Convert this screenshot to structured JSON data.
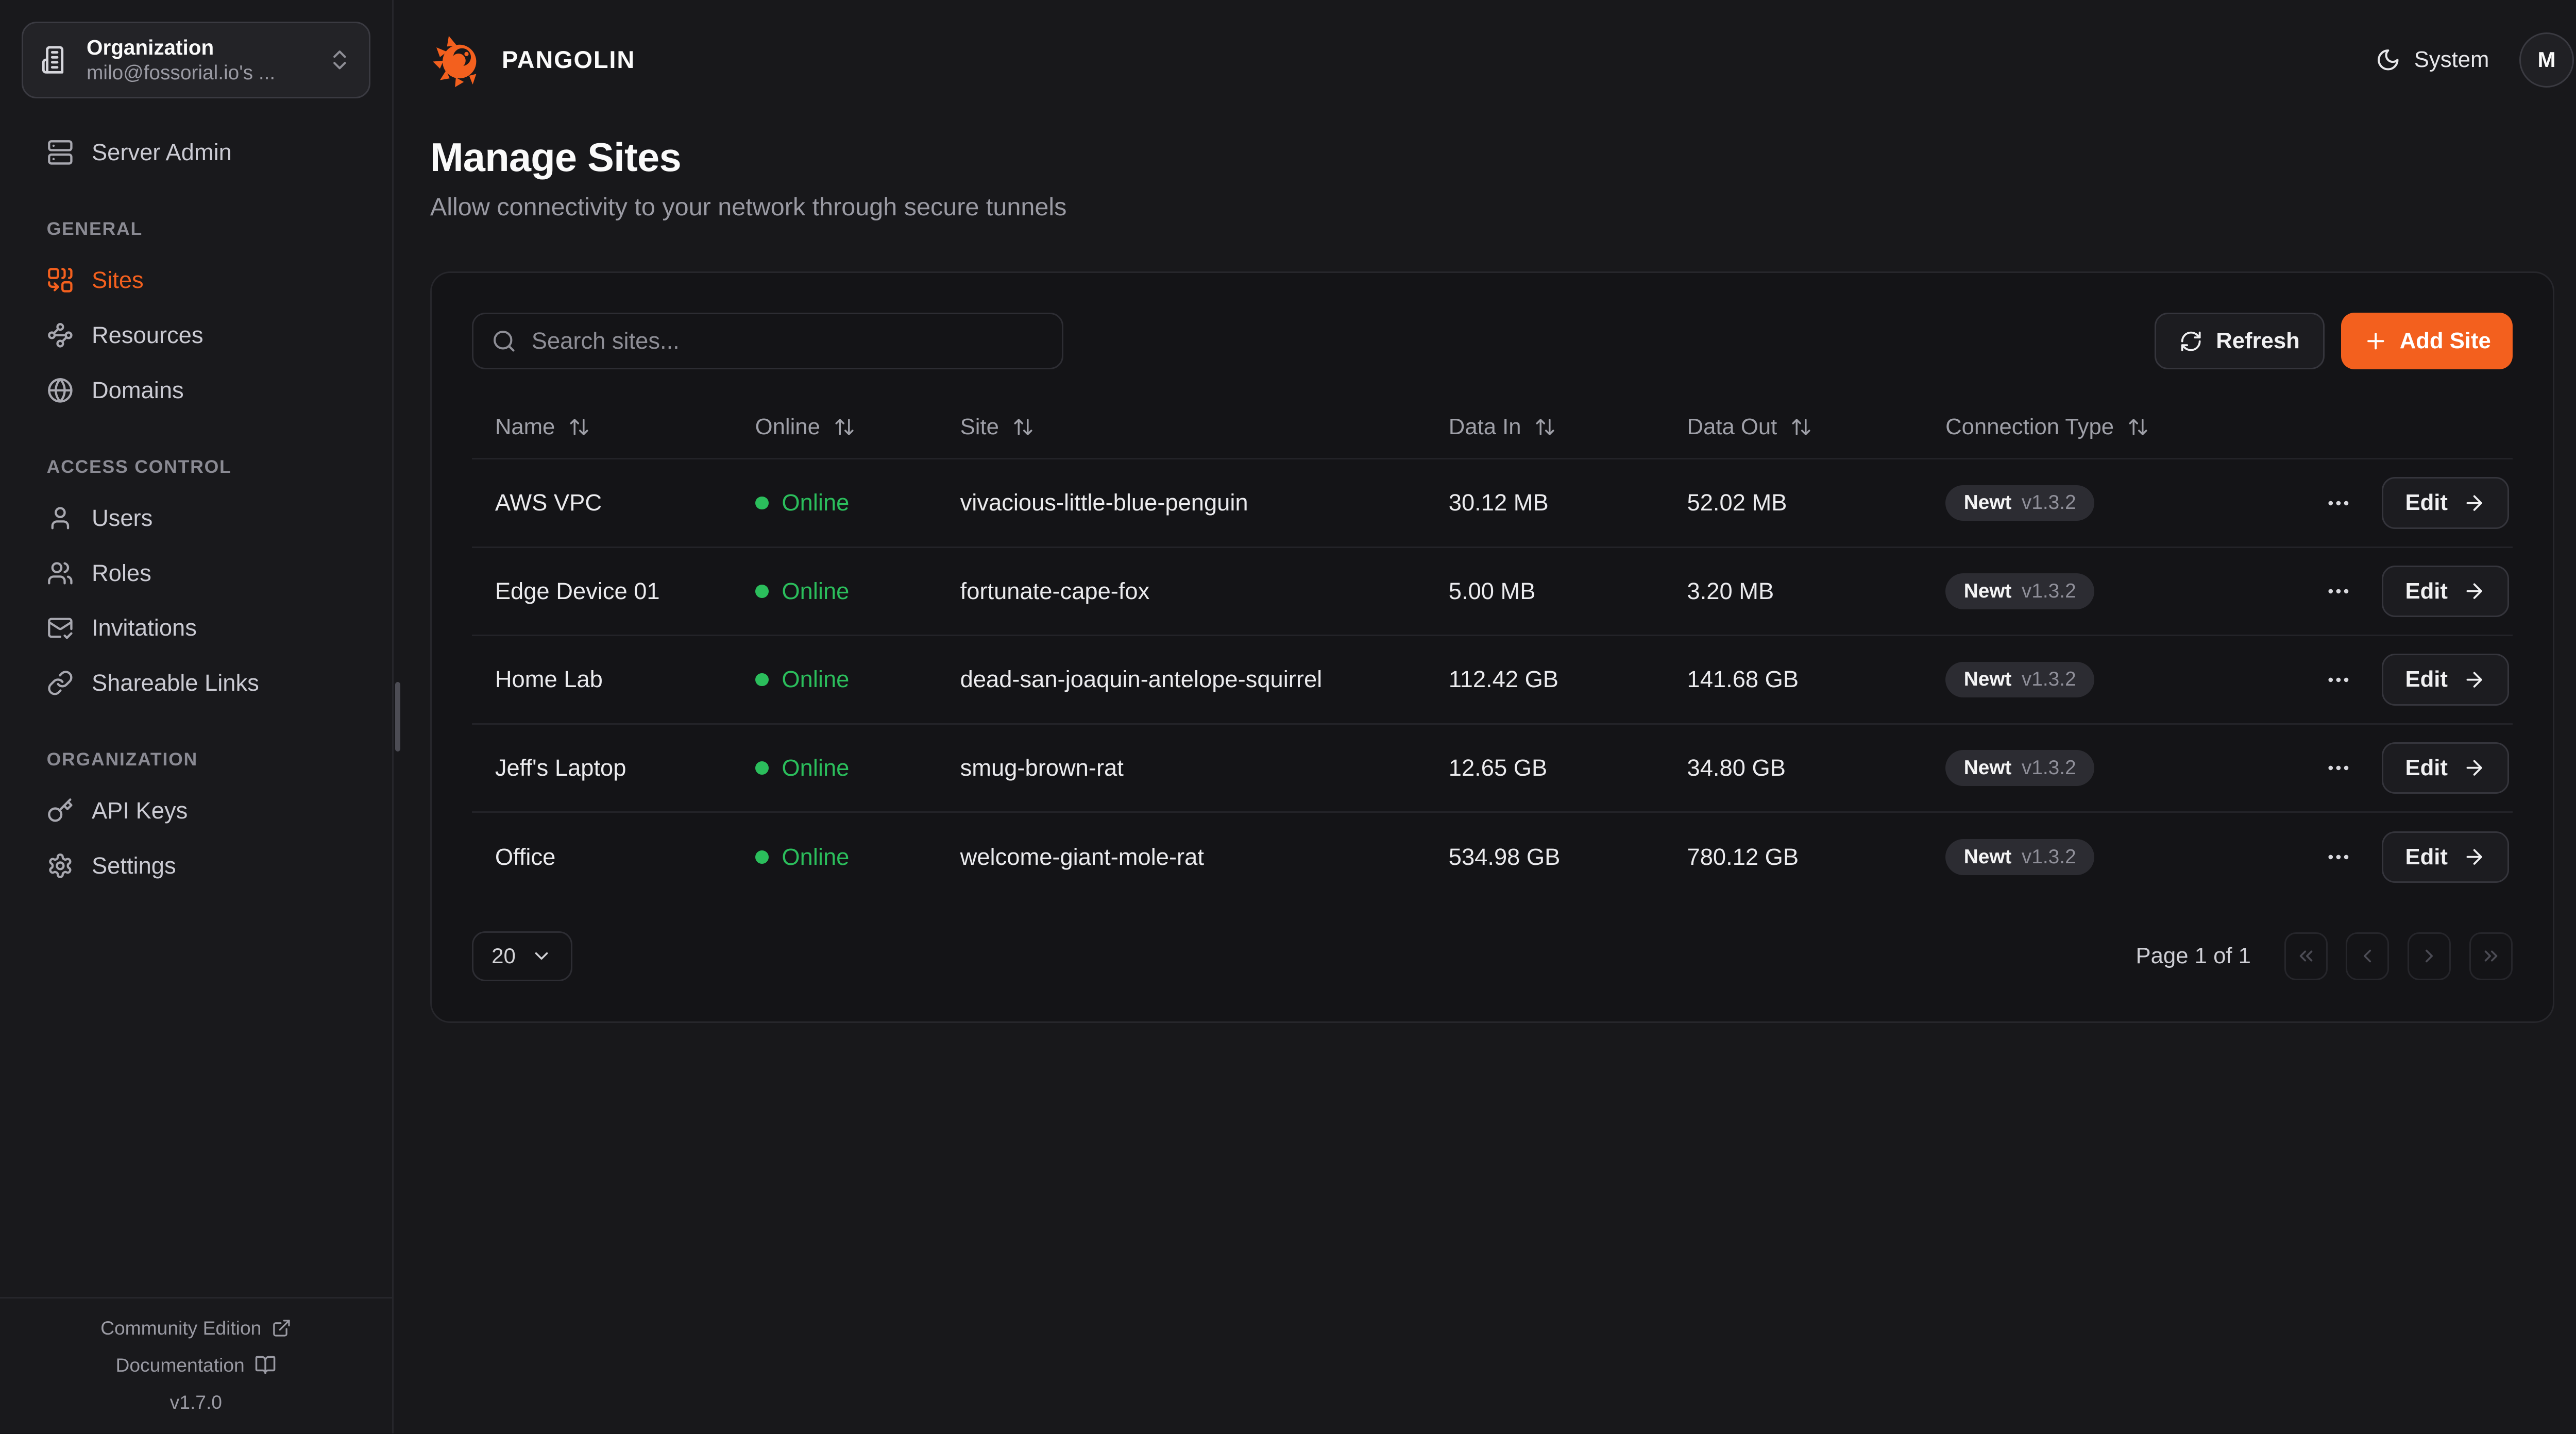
{
  "brand": {
    "name": "PANGOLIN"
  },
  "org_switcher": {
    "title": "Organization",
    "subtitle": "milo@fossorial.io's ..."
  },
  "sidebar": {
    "server_admin": {
      "label": "Server Admin"
    },
    "sections": [
      {
        "title": "GENERAL",
        "items": [
          {
            "label": "Sites",
            "icon": "combine-icon",
            "active": true
          },
          {
            "label": "Resources",
            "icon": "waypoints-icon",
            "active": false
          },
          {
            "label": "Domains",
            "icon": "globe-icon",
            "active": false
          }
        ]
      },
      {
        "title": "ACCESS CONTROL",
        "items": [
          {
            "label": "Users",
            "icon": "user-icon",
            "active": false
          },
          {
            "label": "Roles",
            "icon": "users-icon",
            "active": false
          },
          {
            "label": "Invitations",
            "icon": "mail-check-icon",
            "active": false
          },
          {
            "label": "Shareable Links",
            "icon": "link-icon",
            "active": false
          }
        ]
      },
      {
        "title": "ORGANIZATION",
        "items": [
          {
            "label": "API Keys",
            "icon": "key-icon",
            "active": false
          },
          {
            "label": "Settings",
            "icon": "settings-icon",
            "active": false
          }
        ]
      }
    ],
    "footer": {
      "community_edition": "Community Edition",
      "documentation": "Documentation",
      "version": "v1.7.0"
    }
  },
  "topbar": {
    "theme_label": "System",
    "avatar_initial": "M"
  },
  "page": {
    "title": "Manage Sites",
    "subtitle": "Allow connectivity to your network through secure tunnels"
  },
  "toolbar": {
    "search_placeholder": "Search sites...",
    "refresh_label": "Refresh",
    "add_site_label": "Add Site"
  },
  "table": {
    "columns": [
      "Name",
      "Online",
      "Site",
      "Data In",
      "Data Out",
      "Connection Type"
    ],
    "rows": [
      {
        "name": "AWS VPC",
        "status": "Online",
        "site": "vivacious-little-blue-penguin",
        "data_in": "30.12 MB",
        "data_out": "52.02 MB",
        "connection_type": "Newt",
        "version": "v1.3.2",
        "edit_label": "Edit"
      },
      {
        "name": "Edge Device 01",
        "status": "Online",
        "site": "fortunate-cape-fox",
        "data_in": "5.00 MB",
        "data_out": "3.20 MB",
        "connection_type": "Newt",
        "version": "v1.3.2",
        "edit_label": "Edit"
      },
      {
        "name": "Home Lab",
        "status": "Online",
        "site": "dead-san-joaquin-antelope-squirrel",
        "data_in": "112.42 GB",
        "data_out": "141.68 GB",
        "connection_type": "Newt",
        "version": "v1.3.2",
        "edit_label": "Edit"
      },
      {
        "name": "Jeff's Laptop",
        "status": "Online",
        "site": "smug-brown-rat",
        "data_in": "12.65 GB",
        "data_out": "34.80 GB",
        "connection_type": "Newt",
        "version": "v1.3.2",
        "edit_label": "Edit"
      },
      {
        "name": "Office",
        "status": "Online",
        "site": "welcome-giant-mole-rat",
        "data_in": "534.98 GB",
        "data_out": "780.12 GB",
        "connection_type": "Newt",
        "version": "v1.3.2",
        "edit_label": "Edit"
      }
    ]
  },
  "pagination": {
    "page_size": "20",
    "page_label": "Page 1 of 1"
  },
  "colors": {
    "accent": "#F3601E",
    "online": "#2BBE5C"
  }
}
